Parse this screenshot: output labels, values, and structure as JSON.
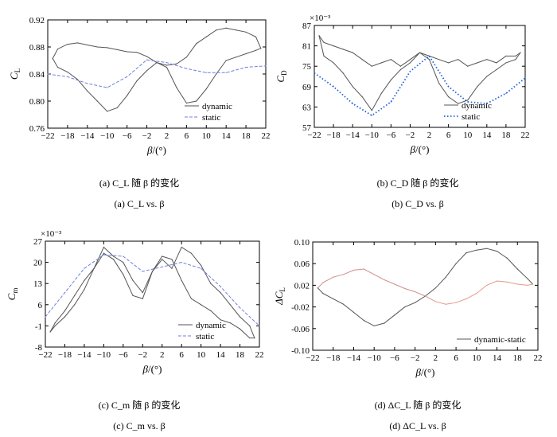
{
  "captions": [
    {
      "cn": "(a) C_L 随 β 的变化",
      "en": "(a) C_L vs. β"
    },
    {
      "cn": "(b) C_D 随 β 的变化",
      "en": "(b) C_D vs. β"
    },
    {
      "cn": "(c) C_m 随 β 的变化",
      "en": "(c) C_m vs. β"
    },
    {
      "cn": "(d) ΔC_L 随 β 的变化",
      "en": "(d) ΔC_L vs. β"
    }
  ],
  "colors": {
    "dynamic": "#555555",
    "static": "#6f7fdc",
    "static_dot": "#2060e0",
    "diff_low": "#d28c8c",
    "diff_high": "#e39a8a"
  },
  "chart_data": [
    {
      "type": "line",
      "id": "a",
      "xlabel": "β/(°)",
      "ylabel": "C_L",
      "xlim": [
        -22,
        22
      ],
      "ylim": [
        0.76,
        0.92
      ],
      "xticks": [
        -22,
        -18,
        -14,
        -10,
        -6,
        -2,
        2,
        6,
        10,
        14,
        18,
        22
      ],
      "yticks": [
        0.76,
        0.8,
        0.84,
        0.88,
        0.92
      ],
      "yticklabels": [
        "0.76",
        "0.80",
        "0.84",
        "0.88",
        "0.92"
      ],
      "legend": {
        "position": "bottom-right",
        "entries": [
          "dynamic",
          "static"
        ]
      },
      "series": [
        {
          "name": "dynamic",
          "style": "solid",
          "segments": [
            {
              "x": [
                -21,
                -20,
                -18,
                -16,
                -14,
                -12,
                -10,
                -8,
                -6,
                -4,
                -2,
                0,
                2,
                4,
                6,
                8,
                10,
                12,
                14,
                16,
                18,
                20,
                21
              ],
              "y": [
                0.863,
                0.877,
                0.884,
                0.886,
                0.883,
                0.88,
                0.879,
                0.876,
                0.873,
                0.872,
                0.866,
                0.857,
                0.853,
                0.855,
                0.865,
                0.885,
                0.895,
                0.905,
                0.908,
                0.905,
                0.902,
                0.895,
                0.878
              ]
            },
            {
              "x": [
                -21,
                -20,
                -18,
                -16,
                -14,
                -12,
                -10,
                -8,
                -6,
                -4,
                -2,
                0,
                2,
                4,
                6,
                8,
                10,
                12,
                14,
                16,
                18,
                20,
                21
              ],
              "y": [
                0.863,
                0.85,
                0.843,
                0.832,
                0.815,
                0.8,
                0.785,
                0.79,
                0.808,
                0.83,
                0.845,
                0.857,
                0.85,
                0.82,
                0.797,
                0.8,
                0.818,
                0.84,
                0.86,
                0.865,
                0.87,
                0.875,
                0.878
              ]
            }
          ]
        },
        {
          "name": "static",
          "style": "dash",
          "x": [
            -22,
            -18,
            -14,
            -10,
            -6,
            -2,
            2,
            6,
            10,
            14,
            18,
            22
          ],
          "y": [
            0.84,
            0.836,
            0.826,
            0.82,
            0.836,
            0.861,
            0.857,
            0.848,
            0.842,
            0.842,
            0.85,
            0.852
          ]
        }
      ]
    },
    {
      "type": "line",
      "id": "b",
      "xlabel": "β/(°)",
      "ylabel": "C_D",
      "multiplier": "×10⁻³",
      "xlim": [
        -22,
        22
      ],
      "ylim": [
        57,
        87
      ],
      "xticks": [
        -22,
        -18,
        -14,
        -10,
        -6,
        -2,
        2,
        6,
        10,
        14,
        18,
        22
      ],
      "yticks": [
        57,
        63,
        69,
        75,
        81,
        87
      ],
      "yticklabels": [
        "57",
        "63",
        "69",
        "75",
        "81",
        "87"
      ],
      "legend": {
        "position": "bottom-right",
        "entries": [
          "dynamic",
          "static"
        ]
      },
      "series": [
        {
          "name": "dynamic",
          "style": "solid",
          "segments": [
            {
              "x": [
                -21,
                -20,
                -18,
                -16,
                -14,
                -12,
                -10,
                -8,
                -6,
                -4,
                -2,
                0,
                2,
                4,
                6,
                8,
                10,
                12,
                14,
                16,
                18,
                20,
                21
              ],
              "y": [
                84,
                82,
                81,
                80,
                79,
                77,
                75,
                76,
                77,
                75,
                77,
                79,
                78,
                77,
                76,
                77,
                75,
                76,
                77,
                76,
                78,
                78,
                79
              ]
            },
            {
              "x": [
                -21,
                -20,
                -18,
                -16,
                -14,
                -12,
                -10,
                -8,
                -6,
                -4,
                -2,
                0,
                2,
                4,
                6,
                8,
                10,
                12,
                14,
                16,
                18,
                20,
                21
              ],
              "y": [
                84,
                78,
                76,
                73,
                69,
                66,
                62,
                67,
                71,
                74,
                76,
                79,
                77,
                70,
                66,
                64,
                65,
                69,
                72,
                74,
                76,
                77,
                79
              ]
            }
          ]
        },
        {
          "name": "static",
          "style": "dot",
          "x": [
            -22,
            -18,
            -14,
            -10,
            -6,
            -2,
            2,
            6,
            10,
            14,
            18,
            22
          ],
          "y": [
            73,
            69,
            64,
            60.5,
            64.5,
            73.5,
            78,
            69,
            64.5,
            64,
            67,
            71.5
          ]
        }
      ]
    },
    {
      "type": "line",
      "id": "c",
      "xlabel": "β/(°)",
      "ylabel": "C_m",
      "multiplier": "×10⁻³",
      "xlim": [
        -22,
        22
      ],
      "ylim": [
        -8,
        27
      ],
      "xticks": [
        -22,
        -18,
        -14,
        -10,
        -6,
        -2,
        2,
        6,
        10,
        14,
        18,
        22
      ],
      "yticks": [
        -8,
        -1,
        6,
        13,
        20,
        27
      ],
      "yticklabels": [
        "-8",
        "-1",
        "6",
        "13",
        "20",
        "27"
      ],
      "legend": {
        "position": "bottom-right",
        "entries": [
          "dynamic",
          "static"
        ]
      },
      "series": [
        {
          "name": "dynamic",
          "style": "solid",
          "segments": [
            {
              "x": [
                -21,
                -20,
                -18,
                -16,
                -14,
                -12,
                -10,
                -8,
                -6,
                -4,
                -2,
                0,
                2,
                4,
                6,
                8,
                10,
                12,
                14,
                16,
                18,
                20,
                21
              ],
              "y": [
                -3,
                0,
                4,
                9,
                14,
                18,
                25,
                22,
                20,
                14,
                10,
                17,
                21,
                18,
                25,
                23,
                19,
                13,
                10,
                6,
                2,
                -1,
                -5
              ]
            },
            {
              "x": [
                -21,
                -20,
                -18,
                -16,
                -14,
                -12,
                -10,
                -8,
                -6,
                -4,
                -2,
                0,
                2,
                4,
                6,
                8,
                10,
                12,
                14,
                16,
                18,
                20,
                21
              ],
              "y": [
                -3,
                -1,
                2,
                6,
                11,
                18,
                23,
                21,
                16,
                9,
                8,
                17,
                22,
                21,
                14,
                8,
                6,
                4,
                1,
                0,
                -2,
                -5,
                -5
              ]
            }
          ]
        },
        {
          "name": "static",
          "style": "dash",
          "x": [
            -22,
            -18,
            -14,
            -10,
            -6,
            -2,
            2,
            6,
            10,
            14,
            18,
            22
          ],
          "y": [
            2,
            10,
            18,
            22.5,
            22,
            17,
            18.5,
            20,
            18,
            12,
            5,
            -1
          ]
        }
      ]
    },
    {
      "type": "line",
      "id": "d",
      "xlabel": "β/(°)",
      "ylabel": "ΔC_L",
      "xlim": [
        -22,
        22
      ],
      "ylim": [
        -0.1,
        0.1
      ],
      "xticks": [
        -22,
        -18,
        -14,
        -10,
        -6,
        -2,
        2,
        6,
        10,
        14,
        18,
        22
      ],
      "yticks": [
        -0.1,
        -0.06,
        -0.02,
        0.02,
        0.06,
        0.1
      ],
      "yticklabels": [
        "-0.10",
        "-0.06",
        "-0.02",
        "0.02",
        "0.06",
        "0.10"
      ],
      "legend": {
        "position": "bottom-right",
        "entries": [
          "dynamic-static"
        ]
      },
      "series": [
        {
          "name": "dynamic-static",
          "style": "solid",
          "segments": [
            {
              "x": [
                -21,
                -20,
                -18,
                -16,
                -14,
                -12,
                -10,
                -8,
                -6,
                -4,
                -2,
                0
              ],
              "y": [
                0.015,
                0.025,
                0.035,
                0.04,
                0.048,
                0.05,
                0.04,
                0.03,
                0.022,
                0.014,
                0.008,
                0.0
              ],
              "tone": "diff_low"
            },
            {
              "x": [
                -21,
                -20,
                -18,
                -16,
                -14,
                -12,
                -10,
                -8,
                -6,
                -4,
                -2,
                0
              ],
              "y": [
                0.015,
                0.005,
                -0.005,
                -0.015,
                -0.03,
                -0.045,
                -0.055,
                -0.05,
                -0.035,
                -0.02,
                -0.012,
                0.0
              ],
              "tone": "dynamic"
            },
            {
              "x": [
                0,
                2,
                4,
                6,
                8,
                10,
                12,
                14,
                16,
                18,
                20,
                21
              ],
              "y": [
                0.0,
                0.015,
                0.035,
                0.06,
                0.08,
                0.085,
                0.088,
                0.083,
                0.07,
                0.05,
                0.032,
                0.022
              ],
              "tone": "dynamic"
            },
            {
              "x": [
                0,
                2,
                4,
                6,
                8,
                10,
                12,
                14,
                16,
                18,
                20,
                21
              ],
              "y": [
                0.0,
                -0.01,
                -0.015,
                -0.012,
                -0.005,
                0.005,
                0.02,
                0.028,
                0.026,
                0.022,
                0.02,
                0.022
              ],
              "tone": "diff_high"
            }
          ]
        }
      ]
    }
  ]
}
